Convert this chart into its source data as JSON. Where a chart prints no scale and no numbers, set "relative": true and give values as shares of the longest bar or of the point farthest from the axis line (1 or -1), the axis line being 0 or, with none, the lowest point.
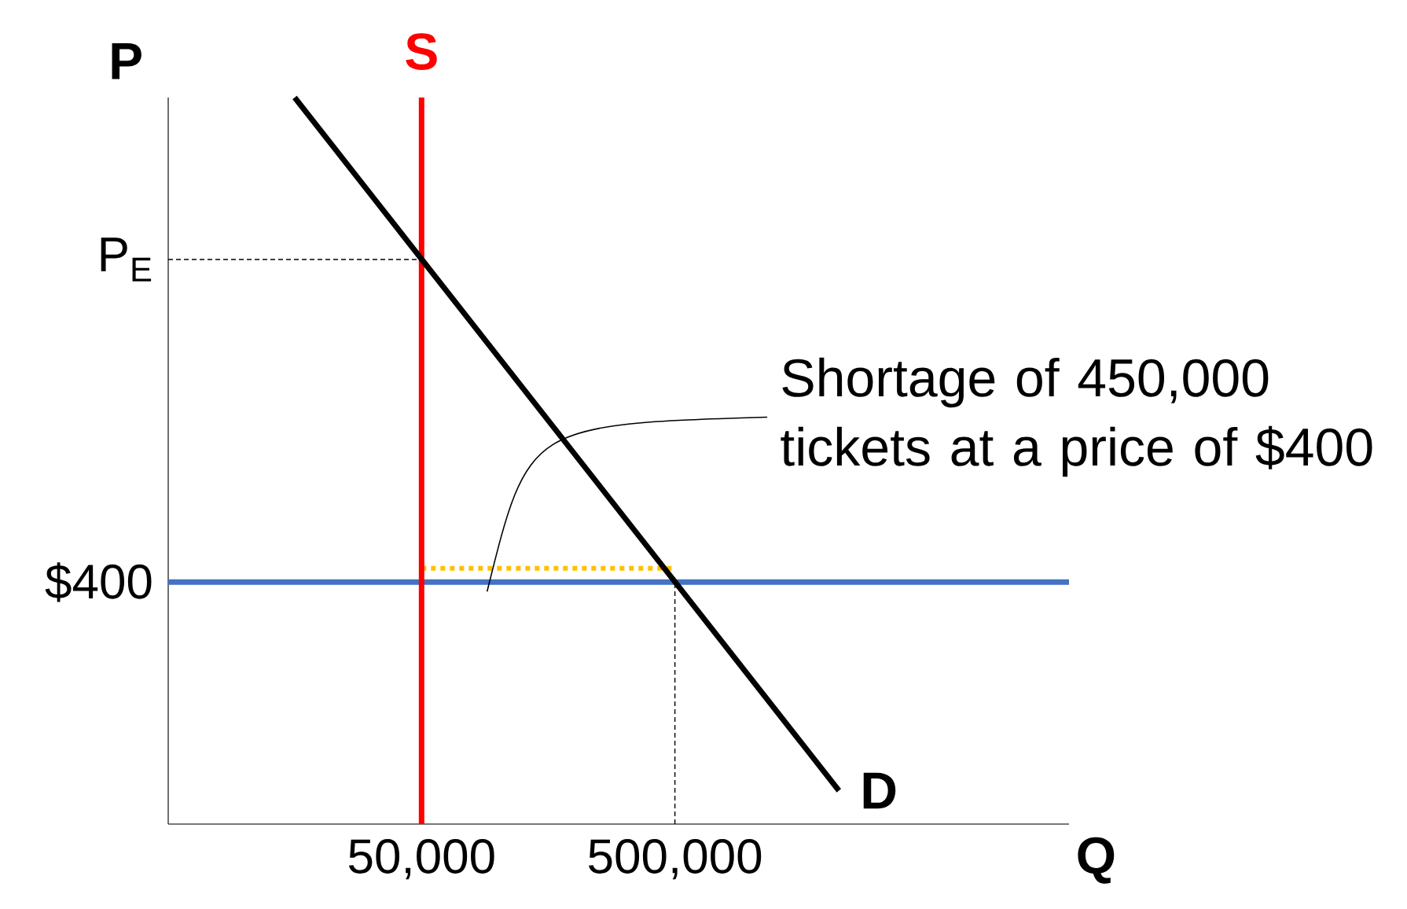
{
  "chart_data": {
    "type": "line",
    "xlabel": "Q",
    "ylabel": "P",
    "relative": true,
    "xlim": [
      -400000,
      1200000
    ],
    "xticks": [
      {
        "value": 50000,
        "label": "50,000"
      },
      {
        "value": 500000,
        "label": "500,000"
      }
    ],
    "series": [
      {
        "name": "S",
        "color": "#ff0000",
        "line_style": "solid",
        "x": [
          50000,
          50000
        ],
        "values": [
          0,
          1
        ]
      },
      {
        "name": "D",
        "color": "#000000",
        "line_style": "solid",
        "x": [
          -175400,
          791300
        ],
        "values": [
          1,
          0.046
        ]
      },
      {
        "color": "#000000",
        "line_style": "dashed",
        "x": [
          -400000,
          50000
        ],
        "values": [
          0.777,
          0.777
        ]
      },
      {
        "color": "#000000",
        "line_style": "dashed",
        "x": [
          500000,
          500000
        ],
        "values": [
          0,
          0.333
        ]
      },
      {
        "color": "#ffc000",
        "line_style": "dotted",
        "x": [
          50000,
          500000
        ],
        "values": [
          0.352,
          0.352
        ]
      }
    ],
    "ref_lines": [
      {
        "axis": "y",
        "value": 0.333,
        "color": "#4472c4"
      }
    ],
    "annotations": [
      "P$_{E}$",
      "$400",
      "Shortage of 450,000 tickets at a price of $400"
    ]
  }
}
